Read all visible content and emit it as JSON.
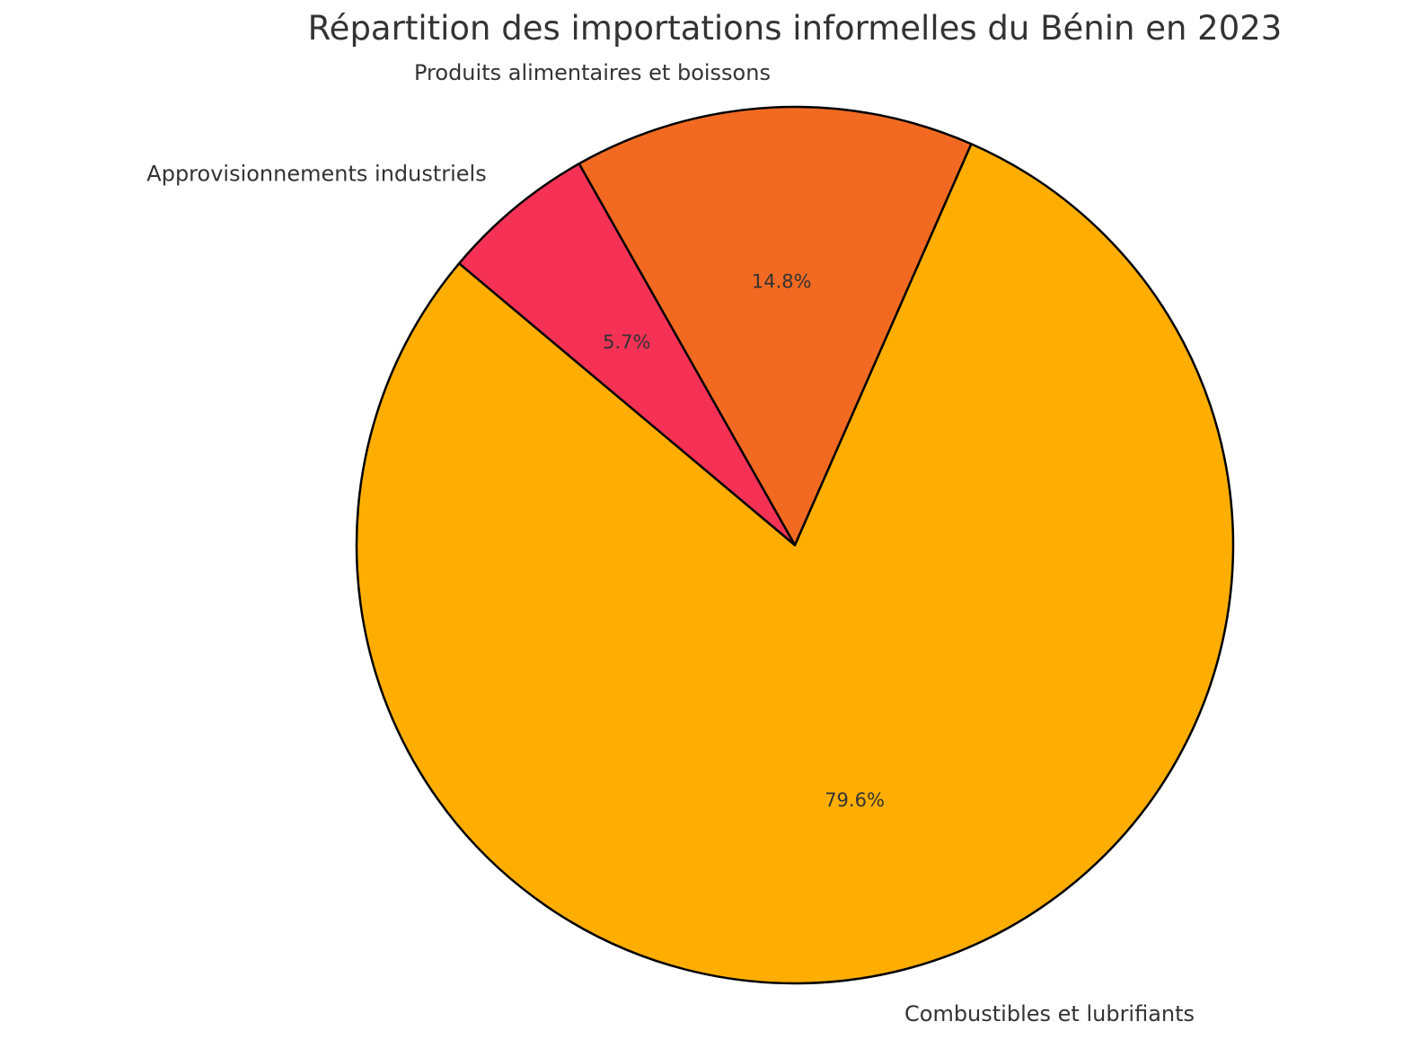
{
  "chart_data": {
    "type": "pie",
    "title": "Répartition des importations informelles du Bénin en 2023",
    "start_angle_deg": 140,
    "direction": "counterclockwise",
    "slices": [
      {
        "label": "Combustibles et lubrifiants",
        "value": 79.6,
        "pct_label": "79.6%",
        "color": "#FFAE00"
      },
      {
        "label": "Produits alimentaires et boissons",
        "value": 14.8,
        "pct_label": "14.8%",
        "color": "#F26A21"
      },
      {
        "label": "Approvisionnements industriels",
        "value": 5.7,
        "pct_label": "5.7%",
        "color": "#F53256"
      }
    ]
  }
}
